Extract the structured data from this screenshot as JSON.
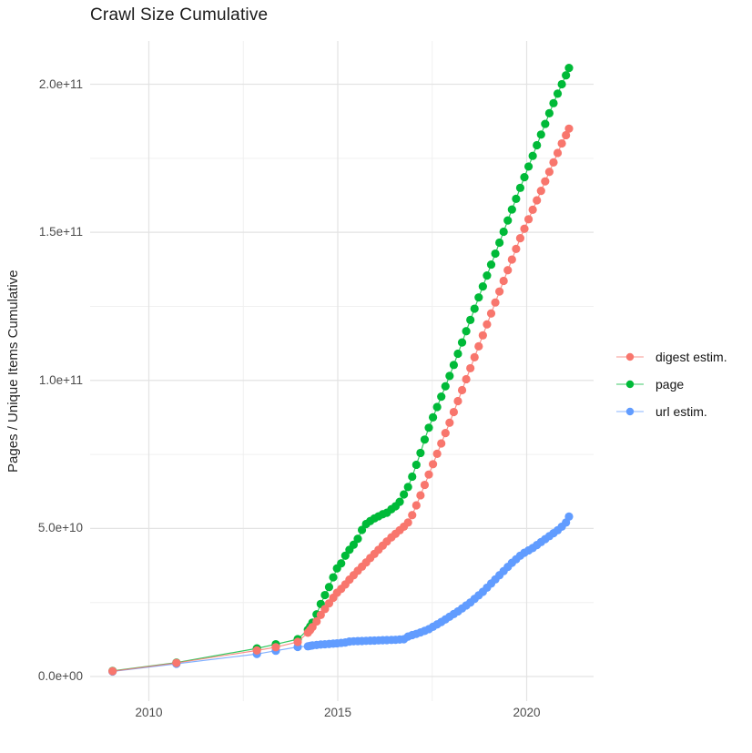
{
  "chart_data": {
    "type": "scatter",
    "title": "Crawl Size Cumulative",
    "xlabel": "",
    "ylabel": "Pages / Unique Items Cumulative",
    "y_value_unit": "1e9 (billions of pages / items)",
    "grid": true,
    "legend_position": "right",
    "x_axis": {
      "range": [
        2008.6,
        2021.9
      ],
      "ticks": [
        {
          "label": "2010",
          "value": 2010
        },
        {
          "label": "2015",
          "value": 2015
        },
        {
          "label": "2020",
          "value": 2020
        }
      ],
      "minor_gridlines": [
        2012.5,
        2017.5
      ]
    },
    "y_axis": {
      "range": [
        0,
        212
      ],
      "ticks": [
        {
          "label": "0.0e+00",
          "value": 0
        },
        {
          "label": "5.0e+10",
          "value": 50
        },
        {
          "label": "1.0e+11",
          "value": 100
        },
        {
          "label": "1.5e+11",
          "value": 150
        },
        {
          "label": "2.0e+11",
          "value": 200
        }
      ],
      "minor_gridlines": [
        25,
        75,
        125,
        175
      ]
    },
    "series": [
      {
        "name": "digest estim.",
        "color": "#F8766D",
        "points": [
          [
            2009.04,
            1.8
          ],
          [
            2010.73,
            4.6
          ],
          [
            2012.86,
            8.8
          ],
          [
            2013.36,
            9.9
          ],
          [
            2013.94,
            11.7
          ],
          [
            2014.21,
            14.8
          ],
          [
            2014.27,
            15.7
          ],
          [
            2014.33,
            16.7
          ],
          [
            2014.44,
            18.6
          ],
          [
            2014.55,
            20.8
          ],
          [
            2014.66,
            22.8
          ],
          [
            2014.77,
            24.7
          ],
          [
            2014.88,
            26.6
          ],
          [
            2014.98,
            28.3
          ],
          [
            2015.09,
            29.6
          ],
          [
            2015.2,
            31.1
          ],
          [
            2015.31,
            32.7
          ],
          [
            2015.42,
            34.2
          ],
          [
            2015.53,
            35.7
          ],
          [
            2015.64,
            37.1
          ],
          [
            2015.75,
            38.5
          ],
          [
            2015.86,
            40.0
          ],
          [
            2015.97,
            41.4
          ],
          [
            2016.08,
            42.8
          ],
          [
            2016.19,
            44.2
          ],
          [
            2016.3,
            45.6
          ],
          [
            2016.42,
            47.0
          ],
          [
            2016.53,
            48.2
          ],
          [
            2016.64,
            49.4
          ],
          [
            2016.75,
            50.6
          ],
          [
            2016.86,
            52.0
          ],
          [
            2016.97,
            54.5
          ],
          [
            2017.08,
            57.8
          ],
          [
            2017.19,
            61.2
          ],
          [
            2017.3,
            64.7
          ],
          [
            2017.41,
            68.2
          ],
          [
            2017.52,
            71.7
          ],
          [
            2017.63,
            75.2
          ],
          [
            2017.74,
            78.7
          ],
          [
            2017.85,
            82.2
          ],
          [
            2017.96,
            85.7
          ],
          [
            2018.07,
            89.3
          ],
          [
            2018.18,
            93.0
          ],
          [
            2018.29,
            96.7
          ],
          [
            2018.4,
            100.4
          ],
          [
            2018.51,
            104.1
          ],
          [
            2018.62,
            107.8
          ],
          [
            2018.73,
            111.5
          ],
          [
            2018.84,
            115.2
          ],
          [
            2018.95,
            118.9
          ],
          [
            2019.06,
            122.6
          ],
          [
            2019.17,
            126.3
          ],
          [
            2019.28,
            130.0
          ],
          [
            2019.39,
            133.6
          ],
          [
            2019.5,
            137.2
          ],
          [
            2019.61,
            140.8
          ],
          [
            2019.72,
            144.4
          ],
          [
            2019.83,
            148.0
          ],
          [
            2019.94,
            151.2
          ],
          [
            2020.05,
            154.4
          ],
          [
            2020.16,
            157.6
          ],
          [
            2020.27,
            160.8
          ],
          [
            2020.38,
            164.0
          ],
          [
            2020.49,
            167.2
          ],
          [
            2020.6,
            170.4
          ],
          [
            2020.71,
            173.6
          ],
          [
            2020.82,
            176.8
          ],
          [
            2020.93,
            180.0
          ],
          [
            2021.04,
            182.8
          ],
          [
            2021.12,
            185.0
          ]
        ]
      },
      {
        "name": "page",
        "color": "#00BA38",
        "points": [
          [
            2009.04,
            1.9
          ],
          [
            2010.73,
            4.7
          ],
          [
            2012.86,
            9.5
          ],
          [
            2013.36,
            10.9
          ],
          [
            2013.94,
            12.6
          ],
          [
            2014.21,
            15.8
          ],
          [
            2014.27,
            16.9
          ],
          [
            2014.33,
            18.2
          ],
          [
            2014.44,
            21.0
          ],
          [
            2014.55,
            24.5
          ],
          [
            2014.66,
            27.5
          ],
          [
            2014.77,
            30.2
          ],
          [
            2014.88,
            33.5
          ],
          [
            2014.98,
            36.5
          ],
          [
            2015.09,
            38.2
          ],
          [
            2015.2,
            40.8
          ],
          [
            2015.31,
            42.8
          ],
          [
            2015.42,
            44.5
          ],
          [
            2015.53,
            46.5
          ],
          [
            2015.64,
            49.5
          ],
          [
            2015.75,
            51.5
          ],
          [
            2015.86,
            52.5
          ],
          [
            2015.97,
            53.4
          ],
          [
            2016.08,
            54.1
          ],
          [
            2016.19,
            54.8
          ],
          [
            2016.3,
            55.3
          ],
          [
            2016.42,
            56.5
          ],
          [
            2016.53,
            57.5
          ],
          [
            2016.64,
            59.0
          ],
          [
            2016.75,
            61.5
          ],
          [
            2016.86,
            64.0
          ],
          [
            2016.97,
            67.5
          ],
          [
            2017.08,
            71.5
          ],
          [
            2017.19,
            75.5
          ],
          [
            2017.3,
            80.0
          ],
          [
            2017.41,
            84.0
          ],
          [
            2017.52,
            87.5
          ],
          [
            2017.63,
            91.0
          ],
          [
            2017.74,
            94.5
          ],
          [
            2017.85,
            98.0
          ],
          [
            2017.96,
            101.5
          ],
          [
            2018.07,
            105.2
          ],
          [
            2018.18,
            109.0
          ],
          [
            2018.29,
            112.8
          ],
          [
            2018.4,
            116.6
          ],
          [
            2018.51,
            120.4
          ],
          [
            2018.62,
            124.2
          ],
          [
            2018.73,
            128.0
          ],
          [
            2018.84,
            131.7
          ],
          [
            2018.95,
            135.4
          ],
          [
            2019.06,
            139.1
          ],
          [
            2019.17,
            142.8
          ],
          [
            2019.28,
            146.5
          ],
          [
            2019.39,
            150.2
          ],
          [
            2019.5,
            154.0
          ],
          [
            2019.61,
            157.7
          ],
          [
            2019.72,
            161.3
          ],
          [
            2019.83,
            165.0
          ],
          [
            2019.94,
            168.6
          ],
          [
            2020.05,
            172.2
          ],
          [
            2020.16,
            175.8
          ],
          [
            2020.27,
            179.4
          ],
          [
            2020.38,
            183.0
          ],
          [
            2020.49,
            186.6
          ],
          [
            2020.6,
            190.2
          ],
          [
            2020.71,
            193.6
          ],
          [
            2020.82,
            196.8
          ],
          [
            2020.93,
            200.0
          ],
          [
            2021.04,
            203.0
          ],
          [
            2021.12,
            205.5
          ]
        ]
      },
      {
        "name": "url estim.",
        "color": "#619CFF",
        "points": [
          [
            2009.04,
            1.7
          ],
          [
            2010.73,
            4.3
          ],
          [
            2012.86,
            7.6
          ],
          [
            2013.36,
            8.7
          ],
          [
            2013.94,
            10.0
          ],
          [
            2014.21,
            10.2
          ],
          [
            2014.27,
            10.35
          ],
          [
            2014.33,
            10.5
          ],
          [
            2014.44,
            10.65
          ],
          [
            2014.55,
            10.8
          ],
          [
            2014.66,
            10.9
          ],
          [
            2014.77,
            11.0
          ],
          [
            2014.88,
            11.1
          ],
          [
            2014.98,
            11.2
          ],
          [
            2015.09,
            11.35
          ],
          [
            2015.2,
            11.5
          ],
          [
            2015.31,
            11.8
          ],
          [
            2015.42,
            11.9
          ],
          [
            2015.53,
            11.95
          ],
          [
            2015.64,
            12.0
          ],
          [
            2015.75,
            12.05
          ],
          [
            2015.86,
            12.1
          ],
          [
            2015.97,
            12.15
          ],
          [
            2016.08,
            12.2
          ],
          [
            2016.19,
            12.25
          ],
          [
            2016.3,
            12.3
          ],
          [
            2016.42,
            12.35
          ],
          [
            2016.53,
            12.4
          ],
          [
            2016.64,
            12.5
          ],
          [
            2016.75,
            12.6
          ],
          [
            2016.86,
            13.5
          ],
          [
            2016.97,
            14.0
          ],
          [
            2017.08,
            14.4
          ],
          [
            2017.19,
            14.9
          ],
          [
            2017.3,
            15.4
          ],
          [
            2017.41,
            16.0
          ],
          [
            2017.52,
            16.8
          ],
          [
            2017.63,
            17.6
          ],
          [
            2017.74,
            18.4
          ],
          [
            2017.85,
            19.3
          ],
          [
            2017.96,
            20.2
          ],
          [
            2018.07,
            21.1
          ],
          [
            2018.18,
            22.0
          ],
          [
            2018.29,
            23.0
          ],
          [
            2018.4,
            24.0
          ],
          [
            2018.51,
            25.0
          ],
          [
            2018.62,
            26.2
          ],
          [
            2018.73,
            27.4
          ],
          [
            2018.84,
            28.6
          ],
          [
            2018.95,
            30.0
          ],
          [
            2019.06,
            31.4
          ],
          [
            2019.17,
            32.8
          ],
          [
            2019.28,
            34.2
          ],
          [
            2019.39,
            35.6
          ],
          [
            2019.5,
            37.0
          ],
          [
            2019.61,
            38.4
          ],
          [
            2019.72,
            39.6
          ],
          [
            2019.83,
            40.8
          ],
          [
            2019.94,
            41.8
          ],
          [
            2020.05,
            42.6
          ],
          [
            2020.16,
            43.4
          ],
          [
            2020.27,
            44.4
          ],
          [
            2020.38,
            45.4
          ],
          [
            2020.49,
            46.4
          ],
          [
            2020.6,
            47.4
          ],
          [
            2020.71,
            48.4
          ],
          [
            2020.82,
            49.4
          ],
          [
            2020.93,
            50.6
          ],
          [
            2021.04,
            52.0
          ],
          [
            2021.12,
            54.0
          ]
        ]
      }
    ]
  }
}
